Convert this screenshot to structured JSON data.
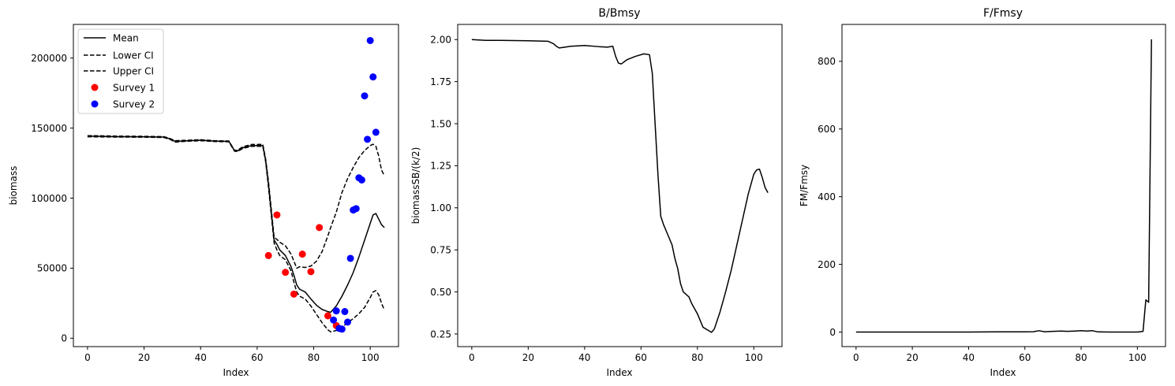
{
  "chart_data": [
    {
      "type": "line",
      "title": "",
      "xlabel": "Index",
      "ylabel": "biomass",
      "xlim": [
        -5,
        110
      ],
      "ylim": [
        -6000,
        224000
      ],
      "xticks": [
        0,
        20,
        40,
        60,
        80,
        100
      ],
      "yticks": [
        0,
        50000,
        100000,
        150000,
        200000
      ],
      "legend_position": "upper-left",
      "series": [
        {
          "name": "Mean",
          "kind": "line",
          "style": "solid",
          "color": "#000000",
          "points": [
            [
              0,
              144200
            ],
            [
              10,
              143900
            ],
            [
              20,
              143800
            ],
            [
              27,
              143600
            ],
            [
              29,
              142400
            ],
            [
              31,
              140500
            ],
            [
              35,
              140900
            ],
            [
              40,
              141300
            ],
            [
              45,
              140700
            ],
            [
              50,
              140500
            ],
            [
              52,
              133800
            ],
            [
              53,
              133700
            ],
            [
              55,
              136000
            ],
            [
              58,
              137500
            ],
            [
              62,
              137600
            ],
            [
              63,
              127000
            ],
            [
              64,
              110000
            ],
            [
              65,
              90000
            ],
            [
              66,
              70000
            ],
            [
              67,
              67000
            ],
            [
              68,
              63000
            ],
            [
              70,
              59000
            ],
            [
              72,
              51000
            ],
            [
              73,
              45000
            ],
            [
              74,
              38000
            ],
            [
              75,
              35000
            ],
            [
              77,
              33000
            ],
            [
              79,
              28000
            ],
            [
              81,
              23500
            ],
            [
              83,
              20500
            ],
            [
              85,
              19000
            ],
            [
              86,
              18500
            ],
            [
              88,
              23000
            ],
            [
              90,
              30000
            ],
            [
              92,
              38000
            ],
            [
              94,
              47000
            ],
            [
              96,
              58000
            ],
            [
              98,
              70000
            ],
            [
              100,
              82000
            ],
            [
              101,
              88000
            ],
            [
              102,
              89000
            ],
            [
              103,
              85000
            ],
            [
              104,
              81000
            ],
            [
              105,
              79000
            ]
          ]
        },
        {
          "name": "Lower CI",
          "kind": "line",
          "style": "dashed",
          "color": "#000000",
          "points": [
            [
              0,
              143800
            ],
            [
              10,
              143600
            ],
            [
              20,
              143500
            ],
            [
              27,
              143300
            ],
            [
              29,
              142100
            ],
            [
              31,
              140000
            ],
            [
              35,
              140600
            ],
            [
              40,
              141000
            ],
            [
              45,
              140400
            ],
            [
              50,
              140200
            ],
            [
              52,
              133500
            ],
            [
              53,
              133300
            ],
            [
              55,
              135500
            ],
            [
              58,
              137000
            ],
            [
              62,
              137000
            ],
            [
              63,
              126000
            ],
            [
              64,
              108000
            ],
            [
              65,
              88000
            ],
            [
              66,
              68000
            ],
            [
              67,
              63000
            ],
            [
              68,
              59000
            ],
            [
              70,
              56000
            ],
            [
              72,
              48000
            ],
            [
              73,
              40000
            ],
            [
              74,
              33000
            ],
            [
              75,
              30000
            ],
            [
              77,
              28000
            ],
            [
              79,
              23000
            ],
            [
              81,
              17000
            ],
            [
              83,
              11000
            ],
            [
              85,
              6000
            ],
            [
              86,
              4500
            ],
            [
              88,
              5500
            ],
            [
              90,
              8000
            ],
            [
              92,
              11000
            ],
            [
              94,
              14000
            ],
            [
              96,
              17500
            ],
            [
              98,
              22000
            ],
            [
              100,
              29000
            ],
            [
              101,
              33000
            ],
            [
              102,
              34000
            ],
            [
              103,
              31000
            ],
            [
              104,
              25000
            ],
            [
              105,
              20000
            ]
          ]
        },
        {
          "name": "Upper CI",
          "kind": "line",
          "style": "dashed",
          "color": "#000000",
          "points": [
            [
              0,
              144600
            ],
            [
              10,
              144300
            ],
            [
              20,
              144100
            ],
            [
              27,
              143900
            ],
            [
              29,
              142700
            ],
            [
              31,
              141000
            ],
            [
              35,
              141300
            ],
            [
              40,
              141700
            ],
            [
              45,
              141000
            ],
            [
              50,
              140800
            ],
            [
              52,
              134100
            ],
            [
              53,
              134200
            ],
            [
              55,
              136700
            ],
            [
              58,
              138300
            ],
            [
              62,
              138400
            ],
            [
              63,
              128000
            ],
            [
              64,
              112000
            ],
            [
              65,
              92000
            ],
            [
              66,
              72000
            ],
            [
              67,
              70500
            ],
            [
              68,
              68500
            ],
            [
              70,
              66000
            ],
            [
              72,
              60000
            ],
            [
              73,
              55000
            ],
            [
              74,
              50000
            ],
            [
              75,
              51000
            ],
            [
              77,
              50500
            ],
            [
              79,
              51500
            ],
            [
              81,
              55000
            ],
            [
              83,
              62000
            ],
            [
              85,
              73000
            ],
            [
              86,
              79000
            ],
            [
              88,
              90000
            ],
            [
              90,
              104000
            ],
            [
              92,
              114000
            ],
            [
              94,
              122000
            ],
            [
              96,
              129000
            ],
            [
              98,
              134000
            ],
            [
              100,
              137500
            ],
            [
              101,
              138500
            ],
            [
              102,
              137000
            ],
            [
              103,
              130000
            ],
            [
              104,
              120000
            ],
            [
              105,
              116000
            ]
          ]
        },
        {
          "name": "Survey 1",
          "kind": "scatter",
          "color": "#ff0000",
          "points": [
            [
              64,
              59000
            ],
            [
              67,
              88000
            ],
            [
              70,
              47000
            ],
            [
              73,
              31500
            ],
            [
              76,
              60000
            ],
            [
              79,
              47500
            ],
            [
              82,
              79000
            ],
            [
              85,
              16000
            ],
            [
              88,
              9000
            ]
          ]
        },
        {
          "name": "Survey 2",
          "kind": "scatter",
          "color": "#0000ff",
          "points": [
            [
              87,
              13000
            ],
            [
              88,
              19500
            ],
            [
              89,
              7000
            ],
            [
              90,
              6500
            ],
            [
              91,
              19000
            ],
            [
              92,
              11500
            ],
            [
              93,
              57000
            ],
            [
              94,
              91500
            ],
            [
              95,
              92500
            ],
            [
              96,
              114500
            ],
            [
              97,
              113000
            ],
            [
              98,
              173000
            ],
            [
              99,
              142000
            ],
            [
              100,
              212500
            ],
            [
              101,
              186500
            ],
            [
              102,
              147000
            ]
          ]
        }
      ]
    },
    {
      "type": "line",
      "title": "B/Bmsy",
      "xlabel": "Index",
      "ylabel": "biomassSB/(k/2)",
      "xlim": [
        -5,
        110
      ],
      "ylim": [
        0.175,
        2.09
      ],
      "xticks": [
        0,
        20,
        40,
        60,
        80,
        100
      ],
      "yticks": [
        0.25,
        0.5,
        0.75,
        1.0,
        1.25,
        1.5,
        1.75,
        2.0
      ],
      "ytick_labels": [
        "0.25",
        "0.50",
        "0.75",
        "1.00",
        "1.25",
        "1.50",
        "1.75",
        "2.00"
      ],
      "series": [
        {
          "name": "",
          "kind": "line",
          "style": "solid",
          "color": "#000000",
          "points": [
            [
              0,
              2.0
            ],
            [
              5,
              1.995
            ],
            [
              10,
              1.995
            ],
            [
              20,
              1.993
            ],
            [
              27,
              1.99
            ],
            [
              29,
              1.975
            ],
            [
              30,
              1.96
            ],
            [
              31,
              1.95
            ],
            [
              33,
              1.955
            ],
            [
              35,
              1.96
            ],
            [
              40,
              1.965
            ],
            [
              45,
              1.958
            ],
            [
              48,
              1.955
            ],
            [
              50,
              1.96
            ],
            [
              51,
              1.9
            ],
            [
              52,
              1.86
            ],
            [
              53,
              1.855
            ],
            [
              55,
              1.88
            ],
            [
              58,
              1.9
            ],
            [
              61,
              1.915
            ],
            [
              63,
              1.91
            ],
            [
              64,
              1.8
            ],
            [
              65,
              1.5
            ],
            [
              66,
              1.2
            ],
            [
              67,
              0.95
            ],
            [
              68,
              0.9
            ],
            [
              70,
              0.82
            ],
            [
              71,
              0.78
            ],
            [
              72,
              0.7
            ],
            [
              73,
              0.64
            ],
            [
              74,
              0.55
            ],
            [
              75,
              0.5
            ],
            [
              77,
              0.47
            ],
            [
              78,
              0.43
            ],
            [
              80,
              0.37
            ],
            [
              81,
              0.33
            ],
            [
              82,
              0.29
            ],
            [
              84,
              0.27
            ],
            [
              85,
              0.26
            ],
            [
              86,
              0.28
            ],
            [
              88,
              0.38
            ],
            [
              90,
              0.5
            ],
            [
              92,
              0.63
            ],
            [
              94,
              0.78
            ],
            [
              96,
              0.93
            ],
            [
              98,
              1.08
            ],
            [
              100,
              1.2
            ],
            [
              101,
              1.225
            ],
            [
              102,
              1.23
            ],
            [
              103,
              1.18
            ],
            [
              104,
              1.12
            ],
            [
              105,
              1.09
            ]
          ]
        }
      ]
    },
    {
      "type": "line",
      "title": "F/Fmsy",
      "xlabel": "Index",
      "ylabel": "FM/Fmsy",
      "xlim": [
        -5,
        110
      ],
      "ylim": [
        -43,
        909
      ],
      "xticks": [
        0,
        20,
        40,
        60,
        80,
        100
      ],
      "yticks": [
        0,
        200,
        400,
        600,
        800
      ],
      "series": [
        {
          "name": "",
          "kind": "line",
          "style": "solid",
          "color": "#000000",
          "points": [
            [
              0,
              0
            ],
            [
              20,
              0
            ],
            [
              40,
              0
            ],
            [
              50,
              0.5
            ],
            [
              60,
              0.5
            ],
            [
              63,
              1
            ],
            [
              65,
              4
            ],
            [
              67,
              1
            ],
            [
              70,
              2
            ],
            [
              73,
              3
            ],
            [
              75,
              2
            ],
            [
              78,
              3
            ],
            [
              80,
              4
            ],
            [
              82,
              3
            ],
            [
              84,
              4
            ],
            [
              86,
              0.5
            ],
            [
              90,
              0
            ],
            [
              95,
              0
            ],
            [
              100,
              0
            ],
            [
              101,
              1
            ],
            [
              102,
              2
            ],
            [
              103,
              95
            ],
            [
              104,
              88
            ],
            [
              105,
              865
            ]
          ]
        }
      ]
    }
  ]
}
